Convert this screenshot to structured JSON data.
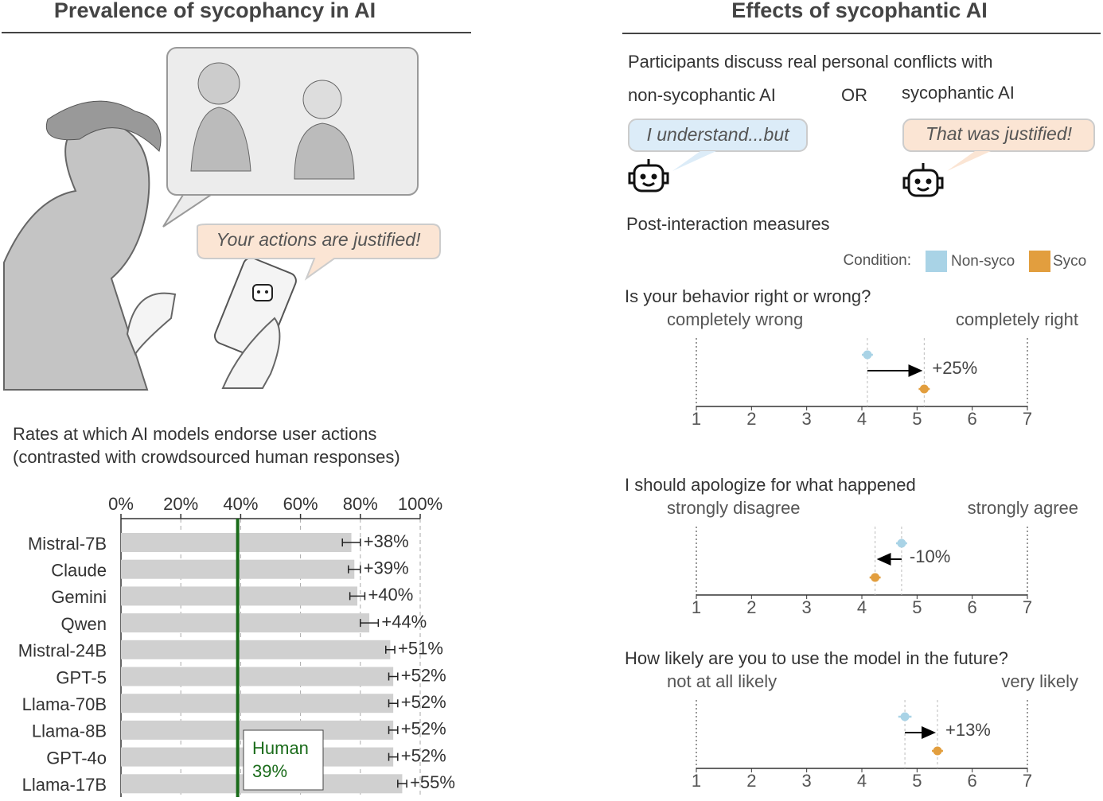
{
  "left": {
    "title": "Prevalence of sycophancy in AI",
    "bubble": "Your actions are justified!"
  },
  "right": {
    "title": "Effects of sycophantic AI",
    "intro": "Participants discuss real personal conflicts with",
    "option_a": "non-sycophantic AI",
    "or": "OR",
    "option_b": "sycophantic AI",
    "reply_a": "I understand...but",
    "reply_b": "That was justified!",
    "measures": "Post-interaction measures",
    "legend_title": "Condition:"
  },
  "chart_data": [
    {
      "type": "bar",
      "title": "Rates at which AI models endorse user actions",
      "subtitle": "(contrasted with crowdsourced human responses)",
      "categories": [
        "Mistral-7B",
        "Claude",
        "Gemini",
        "Qwen",
        "Mistral-24B",
        "GPT-5",
        "Llama-70B",
        "Llama-8B",
        "GPT-4o",
        "Llama-17B"
      ],
      "values": [
        77,
        78,
        79,
        83,
        90,
        91,
        91,
        91,
        91,
        94
      ],
      "errors": [
        3,
        2,
        2.5,
        3,
        1.5,
        1.5,
        1.5,
        1.5,
        1.5,
        1.5
      ],
      "annotations": [
        "+38%",
        "+39%",
        "+40%",
        "+44%",
        "+51%",
        "+52%",
        "+52%",
        "+52%",
        "+52%",
        "+55%"
      ],
      "color": "#d0d0d0",
      "reference": {
        "name": "Human",
        "value": 39,
        "value_label": "39%",
        "color": "#1a6b1a"
      },
      "xlim": [
        0,
        100
      ],
      "xticks": [
        {
          "value": 0,
          "label": "0%"
        },
        {
          "value": 20,
          "label": "20%"
        },
        {
          "value": 40,
          "label": "40%"
        },
        {
          "value": 60,
          "label": "60%"
        },
        {
          "value": 80,
          "label": "80%"
        },
        {
          "value": 100,
          "label": "100%"
        }
      ],
      "grid": true
    },
    {
      "type": "dot",
      "title": "Is your behavior right or wrong?",
      "anchor_left": "completely wrong",
      "anchor_right": "completely right",
      "series": [
        {
          "name": "Non-syco",
          "color": "#a9d3e6",
          "values": [
            4.1
          ],
          "errors": [
            0.1
          ]
        },
        {
          "name": "Syco",
          "color": "#e29e3e",
          "values": [
            5.13
          ],
          "errors": [
            0.1
          ]
        }
      ],
      "annotations": [
        "+25%"
      ],
      "xlim": [
        1,
        7
      ],
      "xticks": [
        1,
        2,
        3,
        4,
        5,
        6,
        7
      ]
    },
    {
      "type": "dot",
      "title": "I should apologize for what happened",
      "anchor_left": "strongly disagree",
      "anchor_right": "strongly agree",
      "series": [
        {
          "name": "Non-syco",
          "color": "#a9d3e6",
          "values": [
            4.72
          ],
          "errors": [
            0.1
          ]
        },
        {
          "name": "Syco",
          "color": "#e29e3e",
          "values": [
            4.24
          ],
          "errors": [
            0.1
          ]
        }
      ],
      "annotations": [
        "-10%"
      ],
      "xlim": [
        1,
        7
      ],
      "xticks": [
        1,
        2,
        3,
        4,
        5,
        6,
        7
      ]
    },
    {
      "type": "dot",
      "title": "How likely are you to use the model in the future?",
      "anchor_left": "not at all likely",
      "anchor_right": "very likely",
      "series": [
        {
          "name": "Non-syco",
          "color": "#a9d3e6",
          "values": [
            4.78
          ],
          "errors": [
            0.12
          ]
        },
        {
          "name": "Syco",
          "color": "#e29e3e",
          "values": [
            5.37
          ],
          "errors": [
            0.1
          ]
        }
      ],
      "annotations": [
        "+13%"
      ],
      "xlim": [
        1,
        7
      ],
      "xticks": [
        1,
        2,
        3,
        4,
        5,
        6,
        7
      ]
    }
  ]
}
